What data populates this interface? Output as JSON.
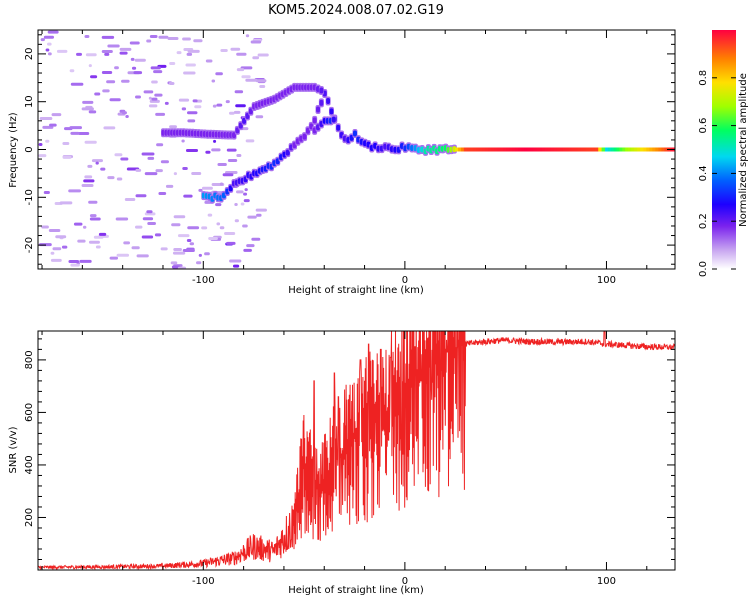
{
  "title": "KOM5.2024.008.07.02.G19",
  "chart_data": [
    {
      "type": "heatmap",
      "xlabel": "Height of straight line (km)",
      "ylabel": "Frequency (Hz)",
      "xlim": [
        -182,
        134
      ],
      "ylim": [
        -25,
        25
      ],
      "xticks": [
        -100,
        0,
        100
      ],
      "yticks": [
        -20,
        -10,
        0,
        10,
        20
      ],
      "colorbar": {
        "label": "Normalized spectral amplitude",
        "range": [
          0,
          1
        ],
        "ticks": [
          "0.0",
          "0.2",
          "0.4",
          "0.6",
          "0.8"
        ],
        "colors": [
          "#ffffff",
          "#c7a4f0",
          "#7a22ee",
          "#1d00ff",
          "#0060ff",
          "#00d8f0",
          "#00ff60",
          "#a0ff00",
          "#ffe000",
          "#ff8000",
          "#ff0040"
        ]
      },
      "ridges": [
        {
          "name": "main",
          "points": [
            [
              -100,
              -10,
              0.45
            ],
            [
              -90,
              -10,
              0.4
            ],
            [
              -85,
              -7.5,
              0.25
            ],
            [
              -75,
              -5,
              0.3
            ],
            [
              -65,
              -3,
              0.35
            ],
            [
              -60,
              -1,
              0.3
            ],
            [
              -55,
              1,
              0.2
            ],
            [
              -50,
              3,
              0.2
            ],
            [
              -45,
              6,
              0.2
            ],
            [
              -40,
              12,
              0.25
            ],
            [
              -35,
              6,
              0.3
            ],
            [
              -30,
              2,
              0.25
            ],
            [
              -25,
              3,
              0.35
            ],
            [
              -20,
              1,
              0.3
            ],
            [
              -15,
              0.5,
              0.3
            ],
            [
              -10,
              0.5,
              0.25
            ],
            [
              -5,
              0,
              0.3
            ],
            [
              0,
              0.5,
              0.35
            ],
            [
              5,
              0,
              0.45
            ],
            [
              10,
              0,
              0.55
            ],
            [
              20,
              0,
              0.6
            ],
            [
              30,
              0,
              0.95
            ],
            [
              60,
              0,
              1.0
            ],
            [
              95,
              0,
              0.95
            ],
            [
              100,
              0,
              0.5
            ],
            [
              110,
              0,
              0.7
            ],
            [
              134,
              0,
              1.0
            ]
          ]
        },
        {
          "name": "upper",
          "points": [
            [
              -120,
              3.5,
              0.2
            ],
            [
              -110,
              3.5,
              0.2
            ],
            [
              -98,
              3.2,
              0.2
            ],
            [
              -85,
              3,
              0.2
            ],
            [
              -80,
              6,
              0.25
            ],
            [
              -75,
              9,
              0.2
            ],
            [
              -65,
              10.5,
              0.2
            ],
            [
              -55,
              13,
              0.2
            ],
            [
              -45,
              13,
              0.2
            ],
            [
              -40,
              12,
              0.25
            ]
          ]
        },
        {
          "name": "branch",
          "points": [
            [
              -45,
              4,
              0.2
            ],
            [
              -40,
              6,
              0.3
            ],
            [
              -37,
              6,
              0.35
            ],
            [
              -34,
              6.5,
              0.2
            ]
          ]
        }
      ]
    },
    {
      "type": "line",
      "xlabel": "Height of straight line (km)",
      "ylabel": "SNR (v/v)",
      "xlim": [
        -182,
        134
      ],
      "ylim": [
        0,
        910
      ],
      "xticks": [
        -100,
        0,
        100
      ],
      "yticks": [
        200,
        400,
        600,
        800
      ],
      "color": "#ee2222",
      "envelope": [
        [
          -182,
          10
        ],
        [
          -150,
          12
        ],
        [
          -120,
          15
        ],
        [
          -100,
          25
        ],
        [
          -85,
          45
        ],
        [
          -75,
          90
        ],
        [
          -65,
          70
        ],
        [
          -55,
          180
        ],
        [
          -50,
          420
        ],
        [
          -45,
          300
        ],
        [
          -40,
          330
        ],
        [
          -35,
          420
        ],
        [
          -30,
          450
        ],
        [
          -25,
          500
        ],
        [
          -20,
          520
        ],
        [
          -15,
          560
        ],
        [
          -10,
          580
        ],
        [
          -5,
          620
        ],
        [
          0,
          660
        ],
        [
          5,
          720
        ],
        [
          10,
          760
        ],
        [
          15,
          790
        ],
        [
          20,
          820
        ],
        [
          25,
          845
        ],
        [
          30,
          860
        ],
        [
          40,
          870
        ],
        [
          50,
          875
        ],
        [
          60,
          870
        ],
        [
          80,
          868
        ],
        [
          90,
          870
        ],
        [
          100,
          860
        ],
        [
          110,
          855
        ],
        [
          120,
          850
        ],
        [
          134,
          848
        ]
      ],
      "spikes": [
        [
          -45,
          720
        ],
        [
          -35,
          750
        ],
        [
          -33,
          660
        ],
        [
          -22,
          800
        ],
        [
          -18,
          860
        ],
        [
          -12,
          840
        ],
        [
          -7,
          810
        ],
        [
          -2,
          500
        ],
        [
          5,
          850
        ],
        [
          8,
          720
        ],
        [
          13,
          700
        ],
        [
          18,
          760
        ],
        [
          21,
          830
        ],
        [
          99,
          930
        ]
      ]
    }
  ]
}
